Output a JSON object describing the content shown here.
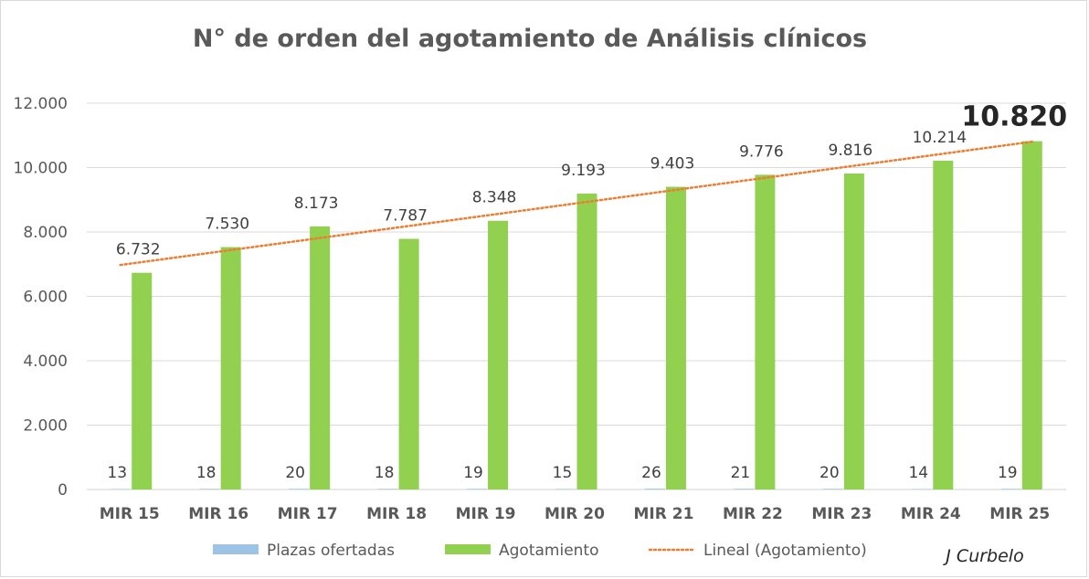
{
  "chart_data": {
    "type": "bar",
    "title": "N° de orden del agotamiento de Análisis clínicos",
    "categories": [
      "MIR 15",
      "MIR 16",
      "MIR 17",
      "MIR 18",
      "MIR 19",
      "MIR 20",
      "MIR 21",
      "MIR 22",
      "MIR 23",
      "MIR 24",
      "MIR 25"
    ],
    "series": [
      {
        "name": "Plazas ofertadas",
        "color": "#9dc3e6",
        "values": [
          13,
          18,
          20,
          18,
          19,
          15,
          26,
          21,
          20,
          14,
          19
        ],
        "labels": [
          "13",
          "18",
          "20",
          "18",
          "19",
          "15",
          "26",
          "21",
          "20",
          "14",
          "19"
        ]
      },
      {
        "name": "Agotamiento",
        "color": "#92d050",
        "values": [
          6732,
          7530,
          8173,
          7787,
          8348,
          9193,
          9403,
          9776,
          9816,
          10214,
          10820
        ],
        "labels": [
          "6.732",
          "7.530",
          "8.173",
          "7.787",
          "8.348",
          "9.193",
          "9.403",
          "9.776",
          "9.816",
          "10.214",
          "10.820"
        ]
      }
    ],
    "trendline": {
      "name": "Lineal (Agotamiento)",
      "color": "#ed7d31",
      "style": "dotted",
      "type": "linear"
    },
    "ylim": [
      0,
      12000
    ],
    "yticks": [
      0,
      2000,
      4000,
      6000,
      8000,
      10000,
      12000
    ],
    "ytick_labels": [
      "0",
      "2.000",
      "4.000",
      "6.000",
      "8.000",
      "10.000",
      "12.000"
    ],
    "grid": true,
    "legend_position": "bottom"
  },
  "footer": {
    "author": "J Curbelo"
  }
}
